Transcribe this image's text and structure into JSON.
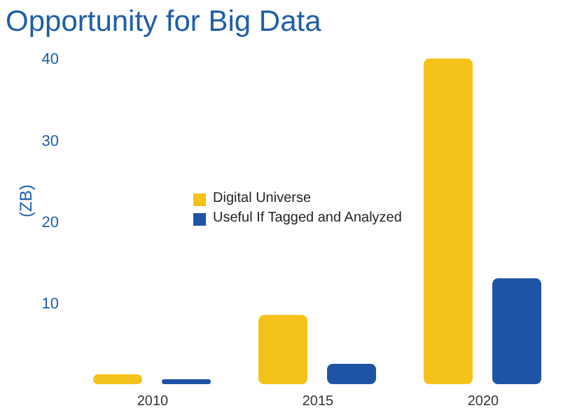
{
  "chart_data": {
    "type": "bar",
    "title": "Opportunity for Big Data",
    "ylabel": "(ZB)",
    "categories": [
      "2010",
      "2015",
      "2020"
    ],
    "series": [
      {
        "name": "Digital Universe",
        "color": "#f5c21b",
        "values": [
          1.2,
          8.5,
          40
        ]
      },
      {
        "name": "Useful If Tagged and Analyzed",
        "color": "#1f53a6",
        "values": [
          0.6,
          2.5,
          13
        ]
      }
    ],
    "ylim": [
      0,
      41
    ],
    "yticks": [
      10,
      20,
      30,
      40
    ],
    "legend": "left"
  }
}
